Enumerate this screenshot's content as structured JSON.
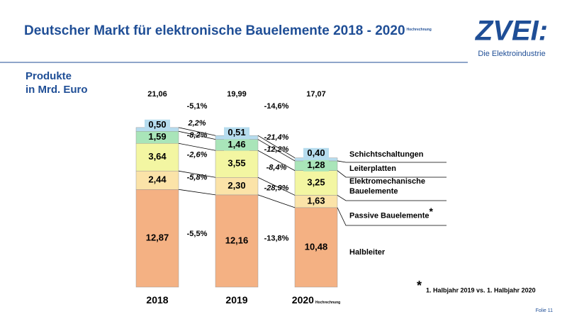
{
  "header": {
    "title": "Deutscher Markt für elektronische Bauelemente 2018 - 2020",
    "title_note": "Hochrechnung",
    "logo": "ZVEI:",
    "logo_tagline": "Die Elektroindustrie"
  },
  "chart_data": {
    "type": "stacked_bar",
    "subtitle_lines": [
      "Produkte",
      "in Mrd. Euro"
    ],
    "categories": [
      "2018",
      "2019",
      "2020"
    ],
    "category_notes": [
      null,
      null,
      "Hochrechnung"
    ],
    "series": [
      {
        "name": "Halbleiter",
        "color": "#f4b183",
        "values": [
          12.87,
          12.16,
          10.48
        ],
        "value_labels": [
          "12,87",
          "12,16",
          "10,48"
        ],
        "changes": [
          {
            "value": -5.5,
            "label": "-5,5%"
          },
          {
            "value": -13.8,
            "label": "-13,8%"
          }
        ]
      },
      {
        "name": "Passive Bauelemente",
        "note": "*",
        "color": "#fbe3a8",
        "values": [
          2.44,
          2.3,
          1.63
        ],
        "value_labels": [
          "2,44",
          "2,30",
          "1,63"
        ],
        "changes": [
          {
            "value": -5.8,
            "label": "-5,8%"
          },
          {
            "value": -28.9,
            "label": "-28,9%"
          }
        ]
      },
      {
        "name": "Elektromechanische Bauelemente",
        "color": "#f3f6a2",
        "values": [
          3.64,
          3.55,
          3.25
        ],
        "value_labels": [
          "3,64",
          "3,55",
          "3,25"
        ],
        "changes": [
          {
            "value": -2.6,
            "label": "-2,6%"
          },
          {
            "value": -8.4,
            "label": "-8,4%"
          }
        ]
      },
      {
        "name": "Leiterplatten",
        "color": "#a9e5b9",
        "values": [
          1.59,
          1.46,
          1.28
        ],
        "value_labels": [
          "1,59",
          "1,46",
          "1,28"
        ],
        "changes": [
          {
            "value": -8.2,
            "label": "-8,2%"
          },
          {
            "value": -12.2,
            "label": "-12,2%"
          }
        ]
      },
      {
        "name": "Schichtschaltungen",
        "color": "#b6dcee",
        "values": [
          0.5,
          0.51,
          0.4
        ],
        "value_labels": [
          "0,50",
          "0,51",
          "0,40"
        ],
        "changes": [
          {
            "value": 2.2,
            "label": "2,2%"
          },
          {
            "value": -21.4,
            "label": "-21,4%"
          }
        ]
      }
    ],
    "totals": [
      21.06,
      19.99,
      17.07
    ],
    "total_labels": [
      "21,06",
      "19,99",
      "17,07"
    ],
    "total_changes": [
      {
        "value": -5.1,
        "label": "-5,1%"
      },
      {
        "value": -14.6,
        "label": "-14,6%"
      }
    ],
    "footnote": {
      "marker": "*",
      "text": "1. Halbjahr 2019 vs. 1. Halbjahr 2020"
    }
  },
  "footer": {
    "slide": "Folie 11"
  }
}
